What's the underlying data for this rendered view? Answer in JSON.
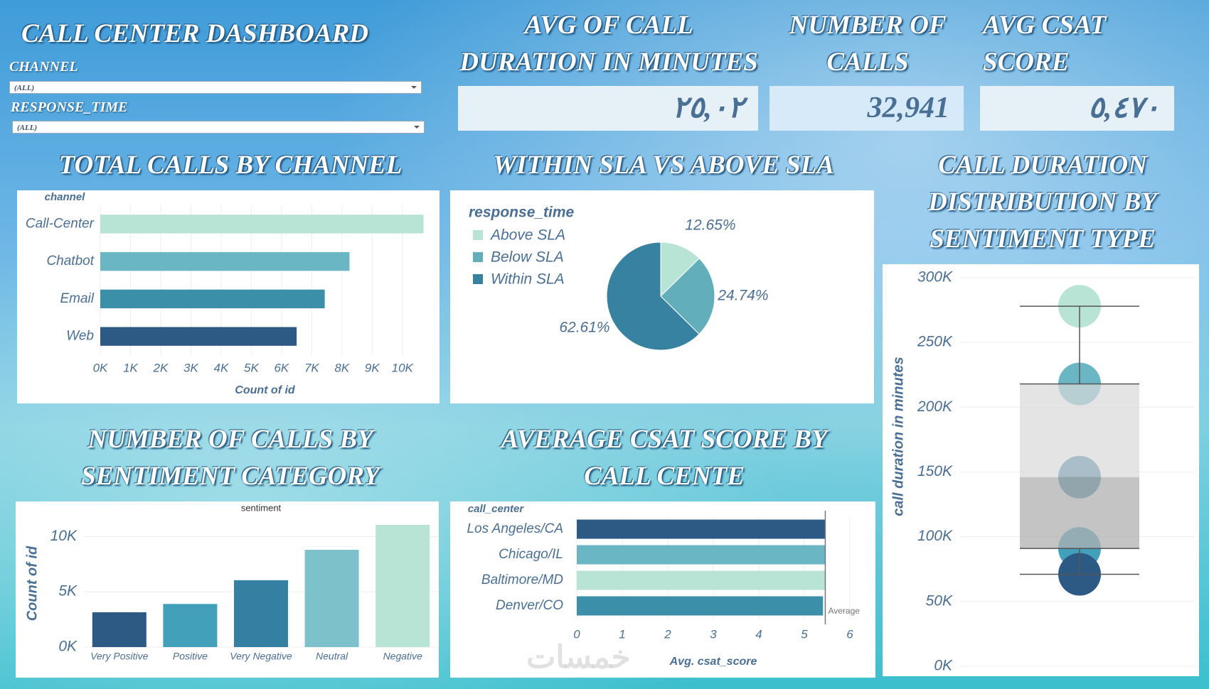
{
  "dashboard": {
    "title": "CALL CENTER DASHBOARD"
  },
  "filters": [
    {
      "label": "CHANNEL",
      "value": "(ALL)"
    },
    {
      "label": "RESPONSE_TIME",
      "value": "(ALL)"
    }
  ],
  "kpis": [
    {
      "label": "AVG OF CALL DURATION IN MINUTES",
      "value": "٢٥,٠٢"
    },
    {
      "label": "NUMBER OF CALLS",
      "value": "32,941"
    },
    {
      "label": "AVG CSAT SCORE",
      "value": "٥,٤٧٠"
    }
  ],
  "watermark": "خمسات",
  "chart_data": [
    {
      "type": "bar",
      "orientation": "horizontal",
      "title": "TOTAL CALLS BY CHANNEL",
      "category_label": "channel",
      "x_label": "Count of id",
      "categories": [
        "Call-Center",
        "Chatbot",
        "Email",
        "Web"
      ],
      "values": [
        10700,
        8250,
        7430,
        6500
      ],
      "colors": [
        "#b8e4d6",
        "#6ab6c4",
        "#3b8fa8",
        "#2c5a85"
      ],
      "xlim": [
        0,
        10900
      ],
      "xticks": [
        {
          "value": 0,
          "label": "0K"
        },
        {
          "value": 1000,
          "label": "1K"
        },
        {
          "value": 2000,
          "label": "2K"
        },
        {
          "value": 3000,
          "label": "3K"
        },
        {
          "value": 4000,
          "label": "4K"
        },
        {
          "value": 5000,
          "label": "5K"
        },
        {
          "value": 6000,
          "label": "6K"
        },
        {
          "value": 7000,
          "label": "7K"
        },
        {
          "value": 8000,
          "label": "8K"
        },
        {
          "value": 9000,
          "label": "9K"
        },
        {
          "value": 10000,
          "label": "10K"
        }
      ],
      "grid": true
    },
    {
      "type": "pie",
      "title": "WITHIN SLA VS ABOVE SLA",
      "legend_title": "response_time",
      "categories": [
        "Above SLA",
        "Below SLA",
        "Within SLA"
      ],
      "values": [
        12.65,
        24.74,
        62.61
      ],
      "value_labels": [
        "12.65%",
        "24.74%",
        "62.61%"
      ],
      "colors": [
        "#b8e4d6",
        "#63aebb",
        "#3682a0"
      ],
      "legend": "top-left"
    },
    {
      "type": "box",
      "title": "CALL DURATION DISTRIBUTION BY SENTIMENT TYPE",
      "y_label": "call duration in minutes",
      "values": [
        278000,
        218000,
        146000,
        91000,
        71000
      ],
      "colors": [
        "#b8e4d6",
        "#6ab6c4",
        "#3a7fa0",
        "#42a0bb",
        "#2c5a85"
      ],
      "box": {
        "min": 71000,
        "q1": 91000,
        "median": 146000,
        "q3": 218000,
        "max": 278000
      },
      "ylim": [
        0,
        300000
      ],
      "yticks": [
        {
          "value": 0,
          "label": "0K"
        },
        {
          "value": 50000,
          "label": "50K"
        },
        {
          "value": 100000,
          "label": "100K"
        },
        {
          "value": 150000,
          "label": "150K"
        },
        {
          "value": 200000,
          "label": "200K"
        },
        {
          "value": 250000,
          "label": "250K"
        },
        {
          "value": 300000,
          "label": "300K"
        }
      ],
      "grid": true
    },
    {
      "type": "bar",
      "orientation": "vertical",
      "title": "NUMBER OF CALLS BY SENTIMENT CATEGORY",
      "category_label": "sentiment",
      "y_label": "Count of id",
      "categories": [
        "Very Positive",
        "Positive",
        "Very Negative",
        "Neutral",
        "Negative"
      ],
      "values": [
        3150,
        3900,
        6050,
        8800,
        11050
      ],
      "colors": [
        "#2c5a85",
        "#42a0bb",
        "#3380a2",
        "#7dc2cb",
        "#b8e4d6"
      ],
      "ylim": [
        0,
        11500
      ],
      "yticks": [
        {
          "value": 0,
          "label": "0K"
        },
        {
          "value": 5000,
          "label": "5K"
        },
        {
          "value": 10000,
          "label": "10K"
        }
      ],
      "grid": true
    },
    {
      "type": "bar",
      "orientation": "horizontal",
      "title": "AVERAGE CSAT SCORE BY CALL CENTE",
      "category_label": "call_center",
      "x_label": "Avg. csat_score",
      "categories": [
        "Los Angeles/CA",
        "Chicago/IL",
        "Baltimore/MD",
        "Denver/CO"
      ],
      "values": [
        5.46,
        5.46,
        5.47,
        5.41
      ],
      "colors": [
        "#2c5a85",
        "#6ab6c4",
        "#b8e4d6",
        "#3b8fa8"
      ],
      "xlim": [
        0,
        6
      ],
      "xticks": [
        0,
        1,
        2,
        3,
        4,
        5,
        6
      ],
      "grid": true,
      "reference_line": {
        "value": 5.46,
        "label": "Average"
      }
    }
  ]
}
